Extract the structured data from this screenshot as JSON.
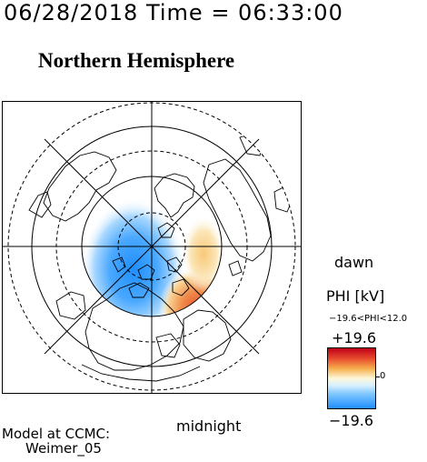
{
  "header": {
    "timestamp": "06/28/2018 Time = 06:33:00",
    "hemisphere_title": "Northern Hemisphere"
  },
  "map": {
    "orientation_labels": {
      "dawn": "dawn",
      "midnight": "midnight"
    }
  },
  "legend": {
    "title": "PHI [kV]",
    "range_text": "−19.6<PHI<12.0",
    "max_label": "+19.6",
    "zero_label": "0",
    "min_label": "−19.6",
    "colors": {
      "positive": "#c00018",
      "neutral": "#fdf7d8",
      "negative": "#1f8fff"
    }
  },
  "footer": {
    "model_line1": "Model at CCMC:",
    "model_line2": "Weimer_05"
  }
}
